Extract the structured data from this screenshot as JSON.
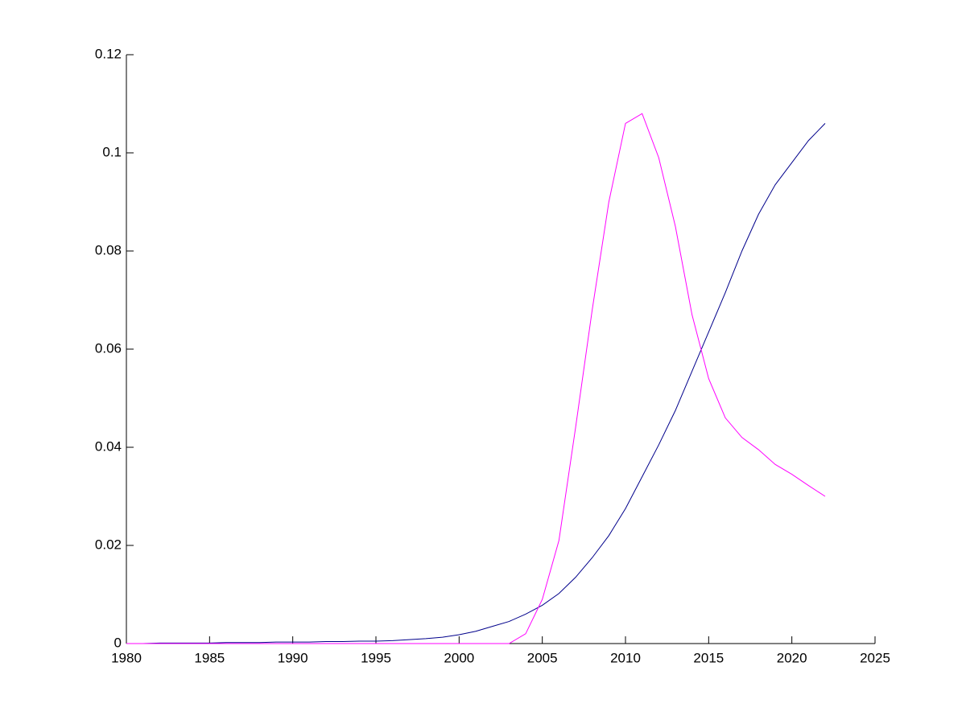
{
  "chart_data": {
    "type": "line",
    "x": [
      1980,
      1981,
      1982,
      1983,
      1984,
      1985,
      1986,
      1987,
      1988,
      1989,
      1990,
      1991,
      1992,
      1993,
      1994,
      1995,
      1996,
      1997,
      1998,
      1999,
      2000,
      2001,
      2002,
      2003,
      2004,
      2005,
      2006,
      2007,
      2008,
      2009,
      2010,
      2011,
      2012,
      2013,
      2014,
      2015,
      2016,
      2017,
      2018,
      2019,
      2020,
      2021,
      2022
    ],
    "series": [
      {
        "color": "#00008b",
        "values": [
          0,
          0,
          0.0001,
          0.0001,
          0.0001,
          0.0001,
          0.0002,
          0.0002,
          0.0002,
          0.0003,
          0.0003,
          0.0003,
          0.0004,
          0.0004,
          0.0005,
          0.0005,
          0.0006,
          0.0008,
          0.001,
          0.0013,
          0.0018,
          0.0025,
          0.0035,
          0.0045,
          0.006,
          0.0078,
          0.0102,
          0.0135,
          0.0175,
          0.022,
          0.0275,
          0.034,
          0.0405,
          0.0475,
          0.0555,
          0.0635,
          0.0715,
          0.08,
          0.0875,
          0.0935,
          0.098,
          0.1025,
          0.106
        ]
      },
      {
        "color": "#ff00ff",
        "values": [
          0,
          0,
          0,
          0,
          0,
          0,
          0,
          0,
          0,
          0,
          0,
          0,
          0,
          0,
          0,
          0,
          0,
          0,
          0,
          0,
          0,
          0,
          0,
          0,
          0.002,
          0.009,
          0.021,
          0.044,
          0.068,
          0.09,
          0.106,
          0.108,
          0.099,
          0.085,
          0.067,
          0.054,
          0.046,
          0.042,
          0.0395,
          0.0365,
          0.0345,
          0.0322,
          0.03
        ]
      }
    ],
    "xlim": [
      1980,
      2025
    ],
    "xticks": [
      1980,
      1985,
      1990,
      1995,
      2000,
      2005,
      2010,
      2015,
      2020,
      2025
    ],
    "ylim": [
      0,
      0.12
    ],
    "yticks": [
      0,
      0.02,
      0.04,
      0.06,
      0.08,
      0.1,
      0.12
    ]
  }
}
